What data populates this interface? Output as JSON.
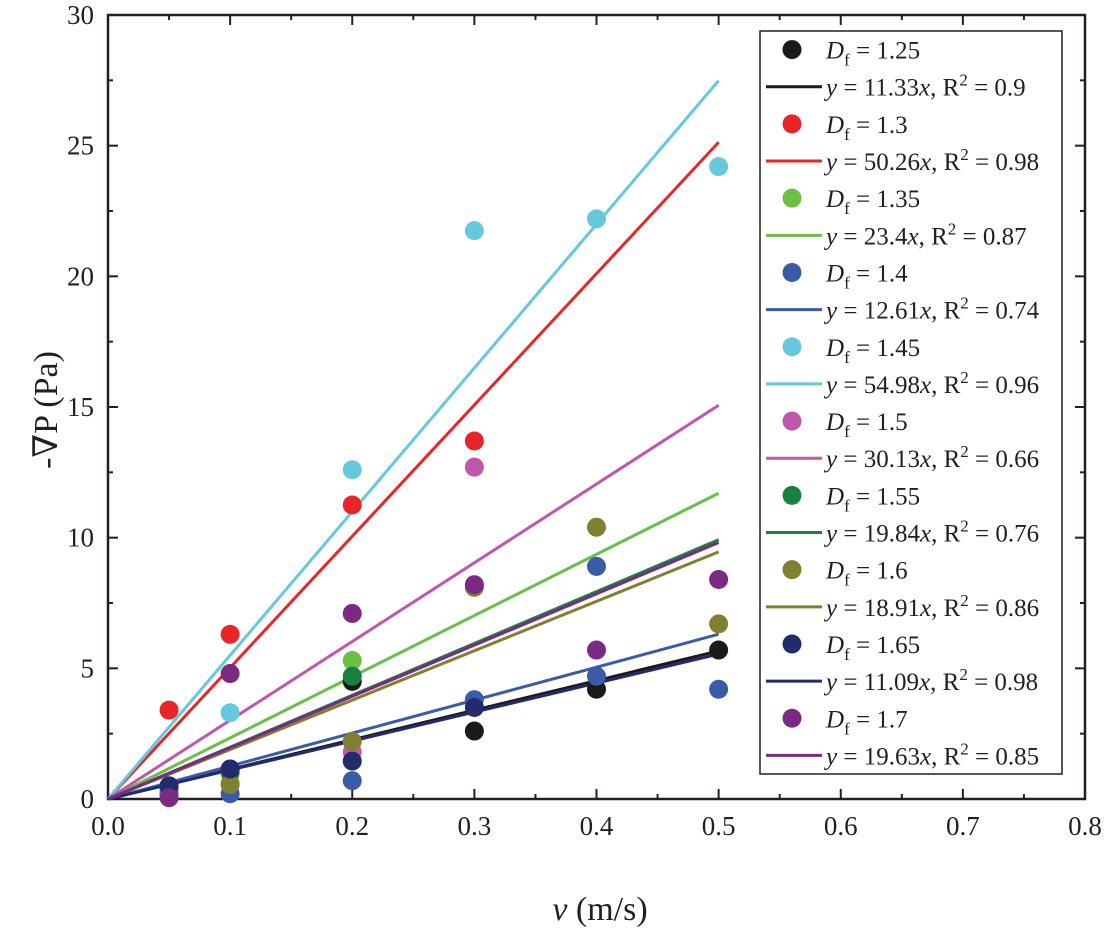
{
  "chart_data": {
    "type": "scatter",
    "title": "",
    "xlabel": {
      "var": "v",
      "unit": " (m/s)"
    },
    "ylabel": "-∇P (Pa)",
    "xlim": [
      0.0,
      0.8
    ],
    "ylim": [
      0,
      30
    ],
    "x_ticks": [
      "0.0",
      "0.1",
      "0.2",
      "0.3",
      "0.4",
      "0.5",
      "0.6",
      "0.7",
      "0.8"
    ],
    "y_ticks": [
      "0",
      "5",
      "10",
      "15",
      "20",
      "25",
      "30"
    ],
    "grid": false,
    "legend_position": "top-right",
    "series": [
      {
        "df": "1.25",
        "color": "#1a1a1a",
        "x": [
          0.05,
          0.1,
          0.2,
          0.3,
          0.4,
          0.5
        ],
        "y": [
          0.4,
          1.1,
          4.5,
          2.6,
          4.2,
          5.7
        ],
        "fit": {
          "slope": 11.33,
          "slope_text": "11.33",
          "r2": "0.9"
        }
      },
      {
        "df": "1.3",
        "color": "#e8262a",
        "x": [
          0.05,
          0.1,
          0.2,
          0.3
        ],
        "y": [
          3.4,
          6.3,
          11.25,
          13.7
        ],
        "fit": {
          "slope": 50.26,
          "slope_text": "50.26",
          "r2": "0.98"
        }
      },
      {
        "df": "1.35",
        "color": "#6cbf45",
        "x": [
          0.05,
          0.1,
          0.2
        ],
        "y": [
          0.3,
          0.6,
          5.3
        ],
        "fit": {
          "slope": 23.4,
          "slope_text": "23.4",
          "r2": "0.87"
        }
      },
      {
        "df": "1.4",
        "color": "#3a5ba7",
        "x": [
          0.05,
          0.1,
          0.2,
          0.3,
          0.4,
          0.4,
          0.5
        ],
        "y": [
          0.2,
          0.2,
          0.7,
          3.8,
          8.9,
          4.7,
          4.2
        ],
        "fit": {
          "slope": 12.61,
          "slope_text": "12.61",
          "r2": "0.74"
        }
      },
      {
        "df": "1.45",
        "color": "#66c8dc",
        "x": [
          0.1,
          0.2,
          0.3,
          0.4,
          0.5
        ],
        "y": [
          3.3,
          12.6,
          21.75,
          22.2,
          24.2
        ],
        "fit": {
          "slope": 54.98,
          "slope_text": "54.98",
          "r2": "0.96"
        }
      },
      {
        "df": "1.5",
        "color": "#c157ab",
        "x": [
          0.05,
          0.2,
          0.3
        ],
        "y": [
          0.1,
          1.8,
          12.7
        ],
        "fit": {
          "slope": 30.13,
          "slope_text": "30.13",
          "r2": "0.66"
        }
      },
      {
        "df": "1.55",
        "color": "#1a8040",
        "x": [
          0.05,
          0.1,
          0.2
        ],
        "y": [
          0.5,
          1.0,
          4.7
        ],
        "fit": {
          "slope": 19.84,
          "slope_text": "19.84",
          "r2": "0.76"
        }
      },
      {
        "df": "1.6",
        "color": "#808030",
        "x": [
          0.1,
          0.2,
          0.3,
          0.4,
          0.5
        ],
        "y": [
          0.55,
          2.2,
          8.1,
          10.4,
          6.7
        ],
        "fit": {
          "slope": 18.91,
          "slope_text": "18.91",
          "r2": "0.86"
        }
      },
      {
        "df": "1.65",
        "color": "#232a6e",
        "x": [
          0.05,
          0.1,
          0.2,
          0.3
        ],
        "y": [
          0.5,
          1.15,
          1.45,
          3.5
        ],
        "fit": {
          "slope": 11.09,
          "slope_text": "11.09",
          "r2": "0.98"
        }
      },
      {
        "df": "1.7",
        "color": "#7a2a82",
        "x": [
          0.05,
          0.1,
          0.2,
          0.3,
          0.4,
          0.5
        ],
        "y": [
          0.05,
          4.8,
          7.1,
          8.2,
          5.7,
          8.4
        ],
        "fit": {
          "slope": 19.63,
          "slope_text": "19.63",
          "r2": "0.85"
        }
      }
    ]
  }
}
